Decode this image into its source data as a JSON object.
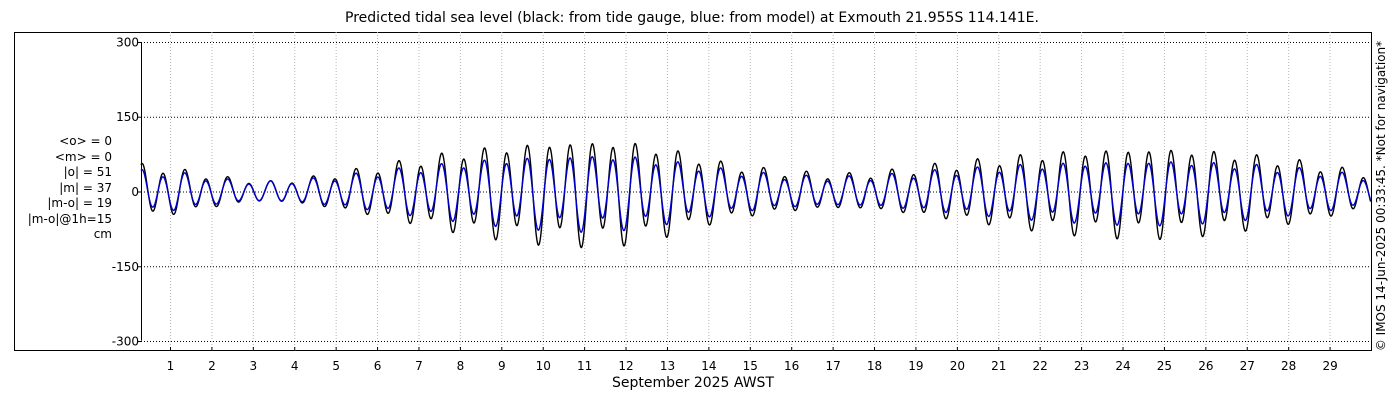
{
  "chart_data": {
    "type": "line",
    "title": "Predicted tidal sea level (black: from tide gauge, blue: from model) at Exmouth 21.955S 114.141E.",
    "xlabel": "September 2025 AWST",
    "ylabel": "",
    "x_ticks": [
      "1",
      "2",
      "3",
      "4",
      "5",
      "6",
      "7",
      "8",
      "9",
      "10",
      "11",
      "12",
      "13",
      "14",
      "15",
      "16",
      "17",
      "18",
      "19",
      "20",
      "21",
      "22",
      "23",
      "24",
      "25",
      "26",
      "27",
      "28",
      "29"
    ],
    "xlim": [
      0.3,
      30
    ],
    "y_ticks": [
      "300",
      "150",
      "0",
      "-150",
      "-300"
    ],
    "ylim": [
      -320,
      320
    ],
    "grid": true,
    "legend": "none",
    "stats": [
      "<o> = 0",
      "<m> = 0",
      "|o| = 51",
      "|m| = 37",
      "|m-o| = 19",
      "|m-o|@1h=15",
      "cm"
    ],
    "credit": "© IMOS 14-Jun-2025 00:33:45. *Not for navigation*",
    "series": [
      {
        "color": "#000000",
        "envelope": [
          [
            0.3,
            58
          ],
          [
            1.3,
            45
          ],
          [
            2.3,
            30
          ],
          [
            3.3,
            20
          ],
          [
            4.3,
            28
          ],
          [
            5.3,
            42
          ],
          [
            6.3,
            58
          ],
          [
            7.3,
            75
          ],
          [
            8.3,
            90
          ],
          [
            9.3,
            100
          ],
          [
            10.3,
            108
          ],
          [
            11.3,
            110
          ],
          [
            12.3,
            105
          ],
          [
            13.3,
            85
          ],
          [
            14.3,
            62
          ],
          [
            15.3,
            48
          ],
          [
            16.3,
            40
          ],
          [
            17.3,
            36
          ],
          [
            18.3,
            42
          ],
          [
            19.3,
            54
          ],
          [
            20.3,
            64
          ],
          [
            21.3,
            74
          ],
          [
            22.3,
            84
          ],
          [
            23.3,
            90
          ],
          [
            24.3,
            94
          ],
          [
            25.3,
            93
          ],
          [
            26.3,
            86
          ],
          [
            27.3,
            76
          ],
          [
            28.3,
            64
          ],
          [
            29.3,
            48
          ],
          [
            30,
            38
          ]
        ]
      },
      {
        "color": "#0000cc",
        "envelope": [
          [
            0.3,
            45
          ],
          [
            1.3,
            38
          ],
          [
            2.3,
            25
          ],
          [
            3.3,
            20
          ],
          [
            4.3,
            25
          ],
          [
            5.3,
            34
          ],
          [
            6.3,
            45
          ],
          [
            7.3,
            55
          ],
          [
            8.3,
            65
          ],
          [
            9.3,
            72
          ],
          [
            10.3,
            78
          ],
          [
            11.3,
            80
          ],
          [
            12.3,
            75
          ],
          [
            13.3,
            62
          ],
          [
            14.3,
            48
          ],
          [
            15.3,
            38
          ],
          [
            16.3,
            32
          ],
          [
            17.3,
            30
          ],
          [
            18.3,
            34
          ],
          [
            19.3,
            42
          ],
          [
            20.3,
            48
          ],
          [
            21.3,
            55
          ],
          [
            22.3,
            60
          ],
          [
            23.3,
            64
          ],
          [
            24.3,
            67
          ],
          [
            25.3,
            67
          ],
          [
            26.3,
            62
          ],
          [
            27.3,
            56
          ],
          [
            28.3,
            48
          ],
          [
            29.3,
            38
          ],
          [
            30,
            30
          ]
        ]
      }
    ]
  }
}
